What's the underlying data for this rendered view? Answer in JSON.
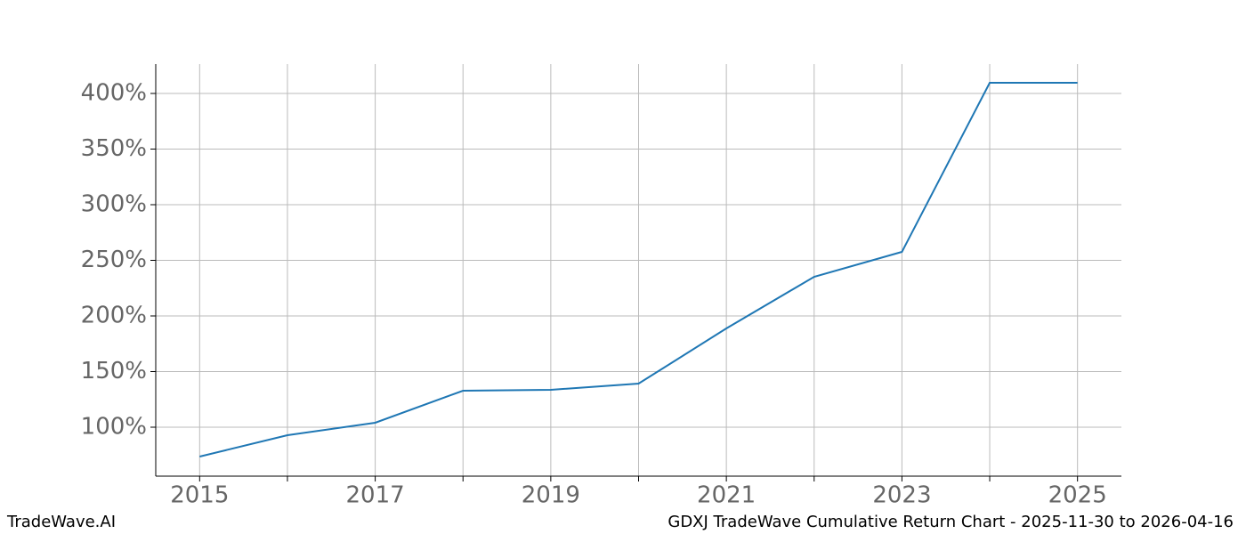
{
  "chart_data": {
    "type": "line",
    "footer_left": "TradeWave.AI",
    "footer_right": "GDXJ TradeWave Cumulative Return Chart - 2025-11-30 to 2026-04-16",
    "x": [
      2015,
      2016,
      2017,
      2018,
      2019,
      2020,
      2021,
      2022,
      2023,
      2024,
      2025
    ],
    "series": [
      {
        "name": "GDXJ",
        "color": "#1f77b4",
        "values": [
          73.6,
          92.8,
          104,
          132.8,
          133.6,
          139.2,
          188.8,
          235.2,
          257.6,
          409.6,
          409.6
        ]
      }
    ],
    "xlim": [
      2014.5,
      2025.5
    ],
    "xticks": [
      2015,
      2017,
      2019,
      2021,
      2023,
      2025
    ],
    "xminorticks": [
      2016,
      2018,
      2020,
      2022,
      2024
    ],
    "ylim": [
      56,
      426.4
    ],
    "yticks": [
      {
        "value": 100,
        "label": "100%"
      },
      {
        "value": 150,
        "label": "150%"
      },
      {
        "value": 200,
        "label": "200%"
      },
      {
        "value": 250,
        "label": "250%"
      },
      {
        "value": 300,
        "label": "300%"
      },
      {
        "value": 350,
        "label": "350%"
      },
      {
        "value": 400,
        "label": "400%"
      }
    ],
    "grid": true
  }
}
